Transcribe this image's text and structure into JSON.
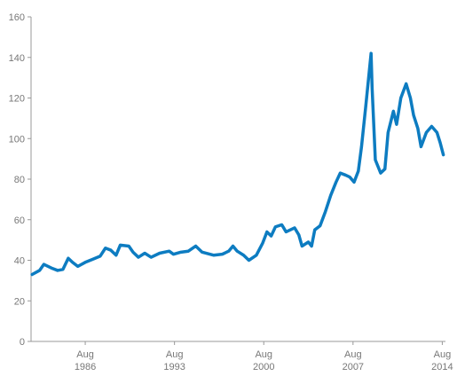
{
  "chart_data": {
    "type": "line",
    "x": [
      "1982-06",
      "1983-01",
      "1983-05",
      "1984-01",
      "1984-06",
      "1984-11",
      "1985-04",
      "1985-08",
      "1986-01",
      "1986-08",
      "1987-03",
      "1987-10",
      "1988-03",
      "1988-08",
      "1989-01",
      "1989-05",
      "1990-01",
      "1990-05",
      "1990-10",
      "1991-04",
      "1991-10",
      "1992-06",
      "1993-03",
      "1993-07",
      "1994-02",
      "1994-09",
      "1995-04",
      "1995-10",
      "1996-09",
      "1997-05",
      "1997-11",
      "1998-03",
      "1998-07",
      "1999-01",
      "1999-06",
      "2000-01",
      "2000-07",
      "2000-11",
      "2001-03",
      "2001-07",
      "2002-01",
      "2002-05",
      "2003-01",
      "2003-05",
      "2003-08",
      "2004-02",
      "2004-05",
      "2004-08",
      "2005-01",
      "2005-06",
      "2005-11",
      "2006-04",
      "2006-08",
      "2007-01",
      "2007-05",
      "2007-09",
      "2008-01",
      "2008-04",
      "2008-08",
      "2009-01",
      "2009-02",
      "2009-05",
      "2009-10",
      "2010-02",
      "2010-05",
      "2010-10",
      "2011-01",
      "2011-05",
      "2011-10",
      "2012-02",
      "2012-05",
      "2012-09",
      "2012-12",
      "2013-05",
      "2013-10",
      "2014-03",
      "2014-06",
      "2014-09"
    ],
    "series": [
      {
        "color": "#0d7cc1",
        "values": [
          33,
          35,
          38,
          36,
          35,
          35.5,
          41,
          39,
          37,
          39,
          40.5,
          42,
          46,
          45,
          42.5,
          47.5,
          47,
          44,
          41.5,
          43.5,
          41.5,
          43.5,
          44.5,
          43,
          44,
          44.5,
          47,
          44,
          42.5,
          43,
          44.5,
          47,
          44.5,
          42.5,
          40,
          42.5,
          48.5,
          54,
          52,
          56.5,
          57.5,
          54,
          56,
          52.5,
          47,
          49,
          47,
          55,
          57,
          64,
          72,
          78.5,
          83,
          82,
          81,
          78.5,
          84,
          96,
          116,
          142,
          124.5,
          89.5,
          83,
          85,
          103,
          113.5,
          107,
          120,
          127,
          120,
          111.5,
          105,
          96,
          103,
          106,
          103,
          98,
          92
        ]
      }
    ],
    "xlim": [
      "1982-05",
      "2014-11"
    ],
    "xticks": [
      {
        "value": "1986-08",
        "label": [
          "Aug",
          "1986"
        ]
      },
      {
        "value": "1993-08",
        "label": [
          "Aug",
          "1993"
        ]
      },
      {
        "value": "2000-08",
        "label": [
          "Aug",
          "2000"
        ]
      },
      {
        "value": "2007-08",
        "label": [
          "Aug",
          "2007"
        ]
      },
      {
        "value": "2014-08",
        "label": [
          "Aug",
          "2014"
        ]
      }
    ],
    "ylim": [
      0,
      160
    ],
    "yticks": [
      0,
      20,
      40,
      60,
      80,
      100,
      120,
      140,
      160
    ]
  }
}
